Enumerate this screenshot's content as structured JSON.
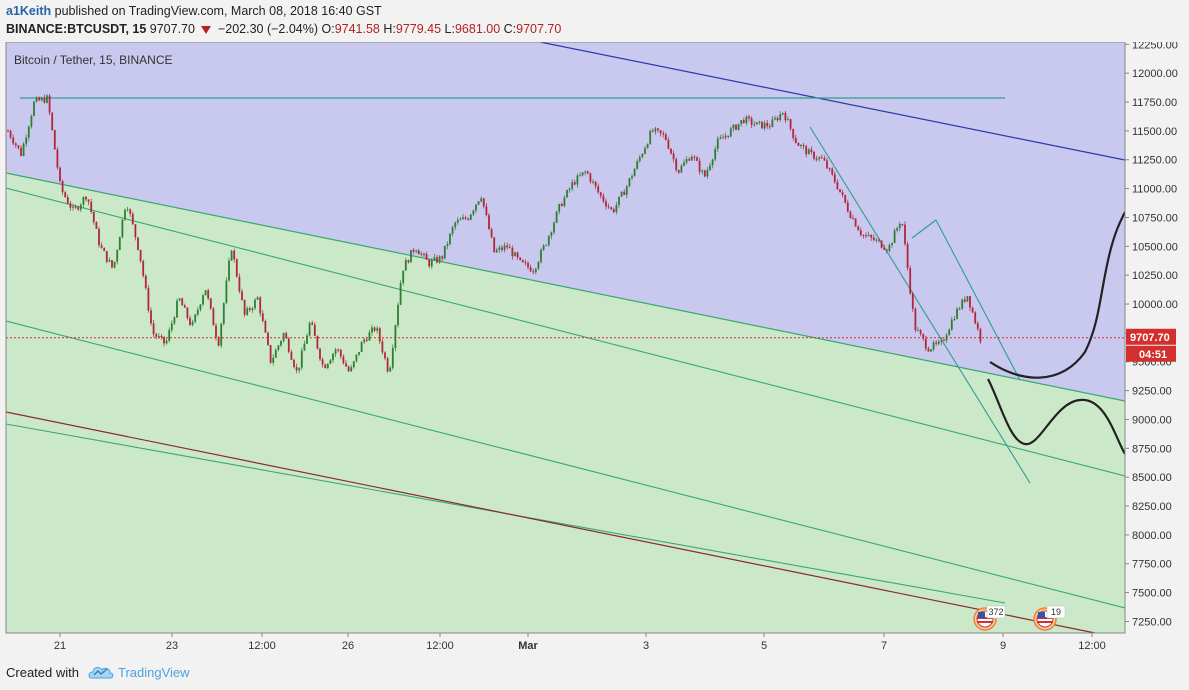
{
  "header": {
    "author": "a1Keith",
    "published": "published on TradingView.com, March 08, 2018 16:40 GST",
    "symbol": "BINANCE:BTCUSDT, 15",
    "last": "9707.70",
    "change": "−202.30 (−2.04%)",
    "o_label": "O:",
    "o": "9741.58",
    "h_label": "H:",
    "h": "9779.45",
    "l_label": "L:",
    "l": "9681.00",
    "c_label": "C:",
    "c": "9707.70"
  },
  "footer": {
    "created_with": "Created with",
    "brand": "TradingView"
  },
  "colors": {
    "upper_zone": "#c9c8ee",
    "lower_zone": "#cbe9c9",
    "candle_up": "#2e7d32",
    "candle_down": "#b2263a",
    "price_line": "#d32f2f",
    "channel_blue": "#2a3aa8",
    "channel_green": "#3aa86e",
    "trend_red": "#8b2a2a"
  },
  "chart_data": {
    "type": "candlestick",
    "pane_label": "Bitcoin / Tether, 15, BINANCE",
    "ylim": [
      7150,
      12270
    ],
    "y_ticks": [
      12250,
      12000,
      11750,
      11500,
      11250,
      11000,
      10750,
      10500,
      10250,
      10000,
      9750,
      9500,
      9250,
      9000,
      8750,
      8500,
      8250,
      8000,
      7750,
      7500,
      7250
    ],
    "y_tick_labels": [
      "12250.00",
      "12000.00",
      "11750.00",
      "11500.00",
      "11250.00",
      "11000.00",
      "10750.00",
      "10500.00",
      "10250.00",
      "10000.00",
      "9750.00",
      "9500.00",
      "9250.00",
      "9000.00",
      "8750.00",
      "8500.00",
      "8250.00",
      "8000.00",
      "7750.00",
      "7500.00",
      "7250.00"
    ],
    "x_ticks": [
      {
        "label": "21",
        "bold": false
      },
      {
        "label": "23",
        "bold": false
      },
      {
        "label": "12:00",
        "bold": false
      },
      {
        "label": "26",
        "bold": false
      },
      {
        "label": "12:00",
        "bold": false
      },
      {
        "label": "Mar",
        "bold": true
      },
      {
        "label": "3",
        "bold": false
      },
      {
        "label": "5",
        "bold": false
      },
      {
        "label": "7",
        "bold": false
      },
      {
        "label": "9",
        "bold": false
      },
      {
        "label": "12:00",
        "bold": false
      }
    ],
    "current_price": 9707.7,
    "current_price_label": "9707.70",
    "countdown": "04:51",
    "events": [
      {
        "flag": "US",
        "count": "372"
      },
      {
        "flag": "US",
        "count": "19"
      }
    ],
    "path_points": [
      11500,
      11300,
      11750,
      11780,
      11000,
      10800,
      10950,
      10500,
      10300,
      10900,
      10450,
      9750,
      9650,
      10050,
      9800,
      10150,
      9650,
      10500,
      9900,
      10050,
      9500,
      9750,
      9400,
      9850,
      9450,
      9620,
      9400,
      9680,
      9800,
      9400,
      10300,
      10500,
      10350,
      10400,
      10700,
      10750,
      10950,
      10450,
      10500,
      10350,
      10300,
      10550,
      10850,
      11050,
      11150,
      10950,
      10800,
      11000,
      11250,
      11500,
      11450,
      11150,
      11300,
      11100,
      11400,
      11500,
      11600,
      11550,
      11550,
      11670,
      11400,
      11300,
      11250,
      11050,
      10800,
      10600,
      10550,
      10480,
      10750,
      9800,
      9620,
      9650,
      9900,
      10080,
      9700
    ]
  }
}
